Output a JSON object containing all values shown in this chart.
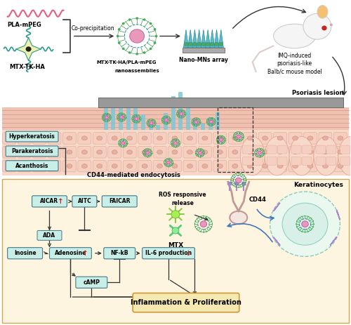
{
  "bg_color": "#ffffff",
  "skin_stripe_color": "#f0c0b0",
  "skin_stripe_line": "#d8a090",
  "skin_cell_color": "#f8d8c8",
  "skin_cell_edge": "#e0a898",
  "skin_nucleus_color": "#e8b0a0",
  "teal_penetrate": "#7cc8d8",
  "gray_bar_color": "#a0a0a0",
  "nano_green": "#4aaa5a",
  "nano_pink_core": "#e898b8",
  "nano_pink_edge": "#c050a0",
  "nano_dark_ring": "#2a8a9a",
  "box_fc": "#c8eee8",
  "box_ec": "#447788",
  "bottom_bg": "#fdf5e0",
  "bottom_ec": "#ccaa55",
  "inf_box_fc": "#f5e8b0",
  "inf_box_ec": "#cc9933",
  "arrow_color": "#333333",
  "red_color": "#cc2222",
  "blue_arrow": "#4477bb",
  "pla_wave_color": "#e06080",
  "mtx_star_color": "#2a9a8a",
  "mn_spike_color": "#5bbccc",
  "mn_spike_edge": "#2a8a9a",
  "mn_base_color": "#aaaaaa",
  "box_labels": [
    "Hyperkeratosis",
    "Parakeratosis",
    "Acanthosis"
  ]
}
